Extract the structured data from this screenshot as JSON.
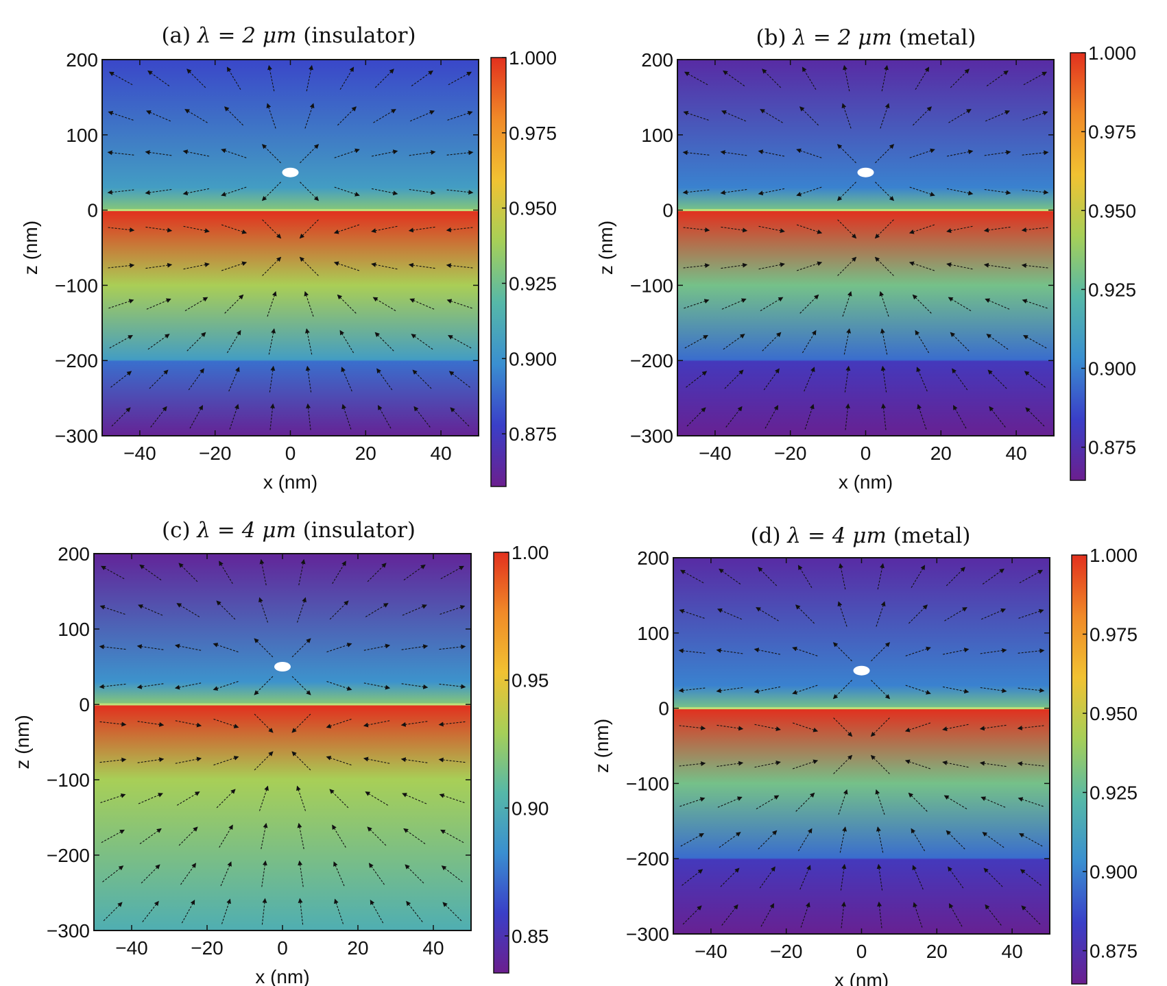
{
  "figure": {
    "colormap": [
      "#6b1f8e",
      "#3a3fc8",
      "#3a8fd0",
      "#56b8a8",
      "#a6cf58",
      "#f1c232",
      "#f08a28",
      "#e2301e"
    ]
  },
  "chart_data": [
    {
      "type": "heatmap",
      "panel": "a",
      "title_prefix": "(a)",
      "title_formula": "λ = 2 μm",
      "title_suffix": "(insulator)",
      "xlabel": "x (nm)",
      "ylabel": "z (nm)",
      "xlim": [
        -50,
        50
      ],
      "ylim": [
        -300,
        200
      ],
      "xticks": [
        "−40",
        "−20",
        "0",
        "20",
        "40"
      ],
      "xtick_values": [
        -40,
        -20,
        0,
        20,
        40
      ],
      "yticks": [
        "200",
        "100",
        "0",
        "−100",
        "−200",
        "−300"
      ],
      "ytick_values": [
        200,
        100,
        0,
        -100,
        -200,
        -300
      ],
      "colorbar": {
        "range": [
          0.8575,
          1.0
        ],
        "ticks": [
          "1.000",
          "0.975",
          "0.950",
          "0.925",
          "0.900",
          "0.875"
        ],
        "tick_values": [
          1.0,
          0.975,
          0.95,
          0.925,
          0.9,
          0.875
        ]
      },
      "profile_z": [
        200,
        30,
        1,
        -1,
        -100,
        -199,
        -201,
        -300
      ],
      "profile_values": [
        0.88,
        0.905,
        0.93,
        1.0,
        0.94,
        0.905,
        0.89,
        0.86
      ],
      "dipole": {
        "x": 0,
        "z": 50
      },
      "interface_z": 0,
      "layer_boundary_z": -200
    },
    {
      "type": "heatmap",
      "panel": "b",
      "title_prefix": "(b)",
      "title_formula": "λ = 2 μm",
      "title_suffix": "(metal)",
      "xlabel": "x (nm)",
      "ylabel": "z (nm)",
      "xlim": [
        -50,
        50
      ],
      "ylim": [
        -300,
        200
      ],
      "xticks": [
        "−40",
        "−20",
        "0",
        "20",
        "40"
      ],
      "xtick_values": [
        -40,
        -20,
        0,
        20,
        40
      ],
      "yticks": [
        "200",
        "100",
        "0",
        "−100",
        "−200",
        "−300"
      ],
      "ytick_values": [
        200,
        100,
        0,
        -100,
        -200,
        -300
      ],
      "colorbar": {
        "range": [
          0.8645,
          1.0
        ],
        "ticks": [
          "1.000",
          "0.975",
          "0.950",
          "0.925",
          "0.900",
          "0.875"
        ],
        "tick_values": [
          1.0,
          0.975,
          0.95,
          0.925,
          0.9,
          0.875
        ]
      },
      "profile_z": [
        200,
        30,
        1,
        -1,
        -100,
        -199,
        -201,
        -300
      ],
      "profile_values": [
        0.872,
        0.9,
        0.93,
        1.0,
        0.93,
        0.895,
        0.88,
        0.866
      ],
      "dipole": {
        "x": 0,
        "z": 50
      },
      "interface_z": 0,
      "layer_boundary_z": -200
    },
    {
      "type": "heatmap",
      "panel": "c",
      "title_prefix": "(c)",
      "title_formula": "λ = 4 μm",
      "title_suffix": "(insulator)",
      "xlabel": "x (nm)",
      "ylabel": "z (nm)",
      "xlim": [
        -50,
        50
      ],
      "ylim": [
        -300,
        200
      ],
      "xticks": [
        "−40",
        "−20",
        "0",
        "20",
        "40"
      ],
      "xtick_values": [
        -40,
        -20,
        0,
        20,
        40
      ],
      "yticks": [
        "200",
        "100",
        "0",
        "−100",
        "−200",
        "−300"
      ],
      "ytick_values": [
        200,
        100,
        0,
        -100,
        -200,
        -300
      ],
      "colorbar": {
        "range": [
          0.8355,
          1.0
        ],
        "ticks": [
          "1.00",
          "0.95",
          "0.90",
          "0.85"
        ],
        "tick_values": [
          1.0,
          0.95,
          0.9,
          0.85
        ]
      },
      "profile_z": [
        200,
        30,
        1,
        -1,
        -100,
        -300
      ],
      "profile_values": [
        0.84,
        0.885,
        0.92,
        1.0,
        0.93,
        0.9
      ],
      "dipole": {
        "x": 0,
        "z": 50
      },
      "interface_z": 0,
      "layer_boundary_z": null
    },
    {
      "type": "heatmap",
      "panel": "d",
      "title_prefix": "(d)",
      "title_formula": "λ = 4 μm",
      "title_suffix": "(metal)",
      "xlabel": "x (nm)",
      "ylabel": "z (nm)",
      "xlim": [
        -50,
        50
      ],
      "ylim": [
        -300,
        200
      ],
      "xticks": [
        "−40",
        "−20",
        "0",
        "20",
        "40"
      ],
      "xtick_values": [
        -40,
        -20,
        0,
        20,
        40
      ],
      "yticks": [
        "200",
        "100",
        "0",
        "−100",
        "−200",
        "−300"
      ],
      "ytick_values": [
        200,
        100,
        0,
        -100,
        -200,
        -300
      ],
      "colorbar": {
        "range": [
          0.8645,
          1.0
        ],
        "ticks": [
          "1.000",
          "0.975",
          "0.950",
          "0.925",
          "0.900",
          "0.875"
        ],
        "tick_values": [
          1.0,
          0.975,
          0.95,
          0.925,
          0.9,
          0.875
        ]
      },
      "profile_z": [
        200,
        30,
        1,
        -1,
        -100,
        -199,
        -201,
        -300
      ],
      "profile_values": [
        0.872,
        0.9,
        0.93,
        1.0,
        0.93,
        0.895,
        0.88,
        0.866
      ],
      "dipole": {
        "x": 0,
        "z": 50
      },
      "interface_z": 0,
      "layer_boundary_z": -200
    }
  ]
}
